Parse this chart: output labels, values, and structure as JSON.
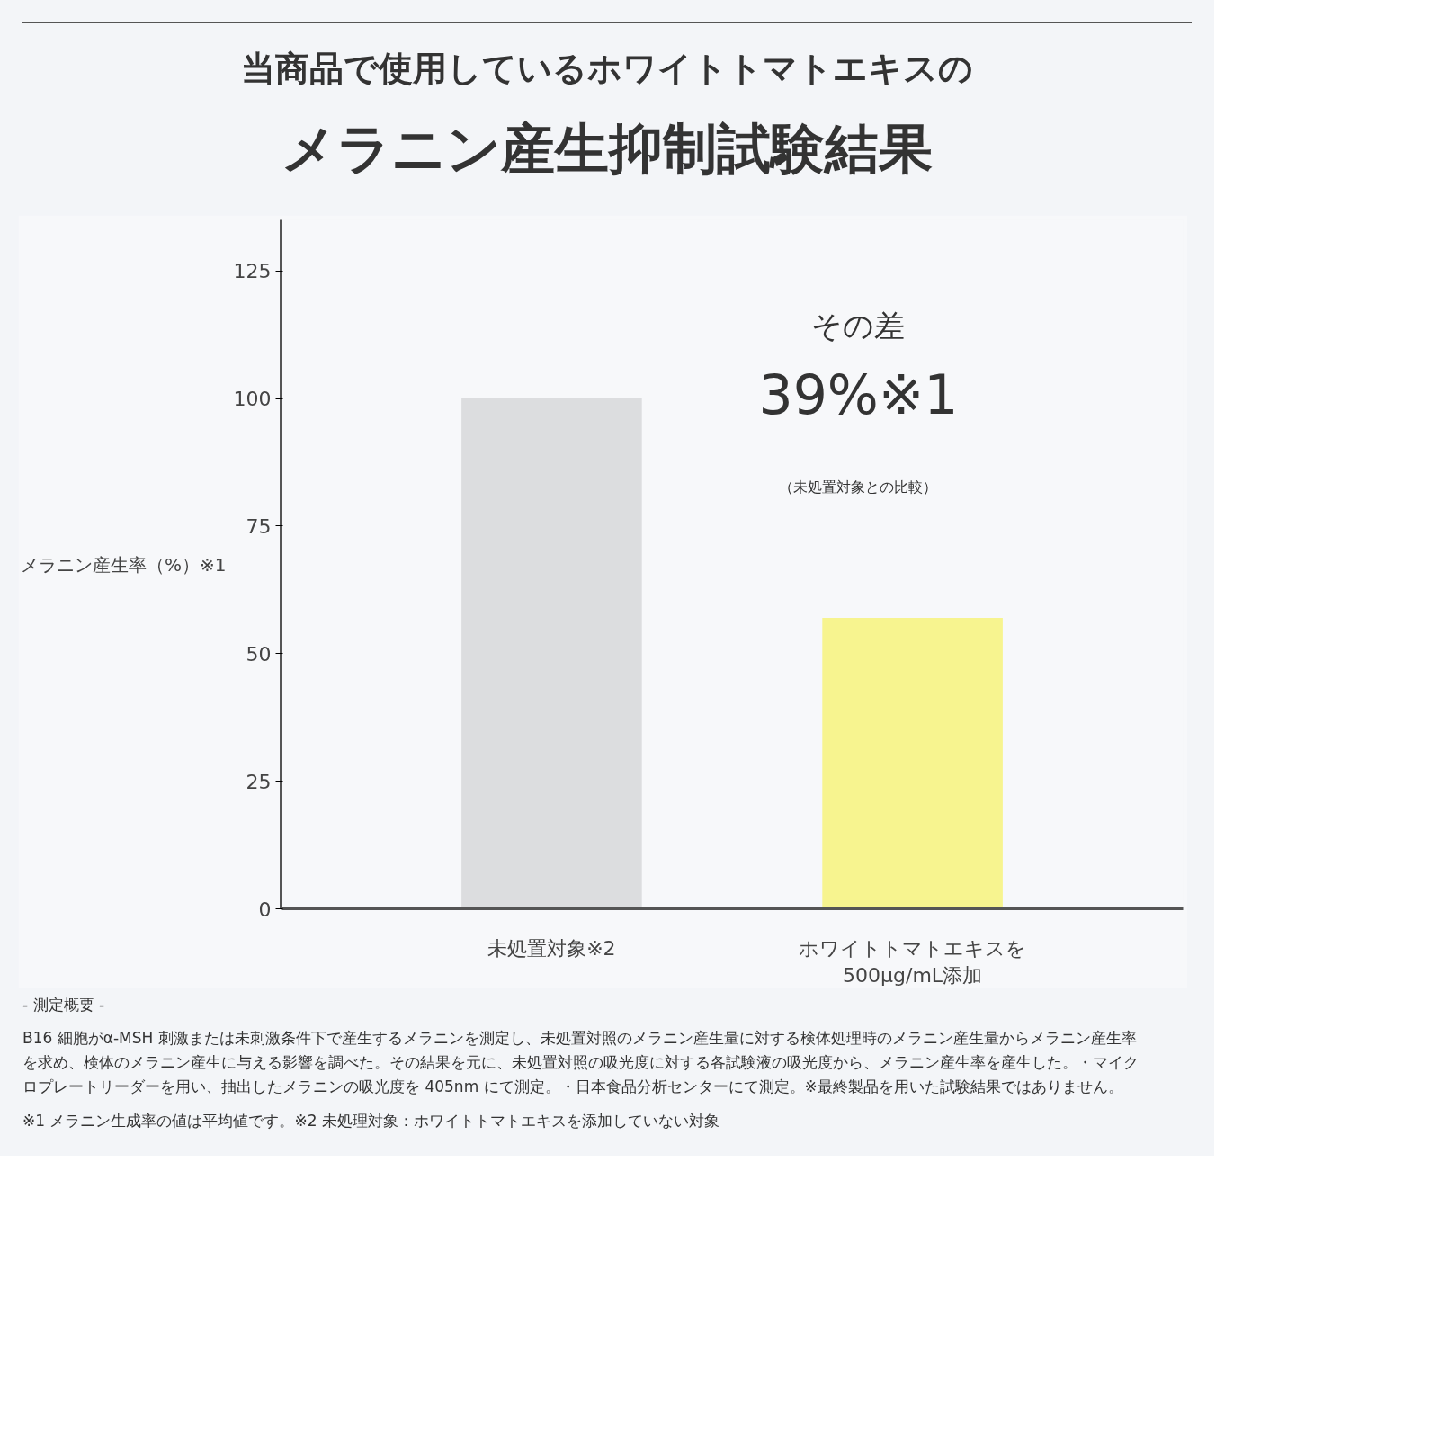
{
  "chart_data": {
    "type": "bar",
    "title": "当商品で使用しているホワイトトマトエキスの",
    "subtitle": "メラニン産生抑制試験結果",
    "ylabel": "メラニン産生率（%）※1",
    "categories": [
      "未処置対象※2",
      "ホワイトトマトエキスを\n500μg/mL添加"
    ],
    "values": [
      100,
      57
    ],
    "colors": [
      "#dcdddf",
      "#f7f48f"
    ],
    "ylim": [
      0,
      135
    ],
    "yticks": [
      0,
      25,
      50,
      75,
      100,
      125
    ],
    "grid": false,
    "annotations": [
      "その差",
      "39%※1",
      "（未処置対象との比較）",
      "- 測定概要 -",
      "B16 細胞がα-MSH 刺激または未刺激条件下で産生するメラニンを測定し、未処置対照のメラニン産生量に対する検体処理時のメラニン産生量からメラニン産生率を求め、検体のメラニン産生に与える影響を調べた。その結果を元に、未処置対照の吸光度に対する各試験液の吸光度から、メラニン産生率を産生した。・マイクロプレートリーダーを用い、抽出したメラニンの吸光度を 405nm にて測定。・日本食品分析センターにて測定。※最終製品を用いた試験結果ではありません。",
      "※1 メラニン生成率の値は平均値です。※2 未処理対象：ホワイトトマトエキスを添加していない対象"
    ]
  }
}
